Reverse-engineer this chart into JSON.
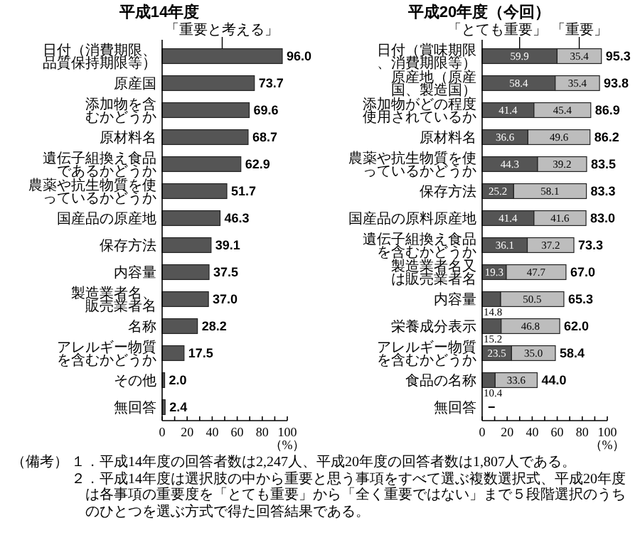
{
  "chart_data": [
    {
      "type": "bar",
      "orientation": "horizontal",
      "title": "平成14年度",
      "legend": "top",
      "categories": [
        "日付（消費期限、品質保持期限等）",
        "原産国",
        "添加物を含むかどうか",
        "原材料名",
        "遺伝子組換え食品であるかどうか",
        "農薬や抗生物質を使っているかどうか",
        "国産品の原産地",
        "保存方法",
        "内容量",
        "製造業者名、販売業者名",
        "名称",
        "アレルギー物質を含むかどうか",
        "その他",
        "無回答"
      ],
      "series": [
        {
          "name": "「重要と考える」",
          "color": "#555555",
          "values": [
            96.0,
            73.7,
            69.6,
            68.7,
            62.9,
            51.7,
            46.3,
            39.1,
            37.5,
            37.0,
            28.2,
            17.5,
            2.0,
            2.4
          ],
          "value_labels": [
            "96.0",
            "73.7",
            "69.6",
            "68.7",
            "62.9",
            "51.7",
            "46.3",
            "39.1",
            "37.5",
            "37.0",
            "28.2",
            "17.5",
            "2.0",
            "2.4"
          ]
        }
      ],
      "xlim": [
        0,
        100
      ],
      "xticks": [
        0,
        {
          "value": 10,
          "label": null
        },
        20,
        {
          "value": 30,
          "label": null
        },
        40,
        {
          "value": 50,
          "label": null
        },
        60,
        {
          "value": 70,
          "label": null
        },
        80,
        {
          "value": 90,
          "label": null
        },
        100
      ],
      "xlabel": "（%）"
    },
    {
      "type": "bar",
      "orientation": "horizontal",
      "stacked": true,
      "title": "平成20年度（今回）",
      "legend": "top",
      "categories": [
        "日付（賞味期限、消費期限等）",
        "原産地（原産国、製造国）",
        "添加物がどの程度使用されているか",
        "原材料名",
        "農薬や抗生物質を使っているかどうか",
        "保存方法",
        "国産品の原料原産地",
        "遺伝子組換え食品を含むかどうか",
        "製造業者名又は販売業者名",
        "内容量",
        "栄養成分表示",
        "アレルギー物質を含むかどうか",
        "食品の名称",
        "無回答"
      ],
      "series": [
        {
          "name": "「とても重要」",
          "color": "#555555",
          "values": [
            59.9,
            58.4,
            41.4,
            36.6,
            44.3,
            25.2,
            41.4,
            36.1,
            19.3,
            14.8,
            15.2,
            23.5,
            10.4,
            null
          ],
          "value_labels": [
            "59.9",
            "58.4",
            "41.4",
            "36.6",
            "44.3",
            "25.2",
            "41.4",
            "36.1",
            "19.3",
            "14.8",
            "15.2",
            "23.5",
            "10.4",
            null
          ]
        },
        {
          "name": "「重要」",
          "color": "#bdbdbd",
          "values": [
            35.4,
            35.4,
            45.4,
            49.6,
            39.2,
            58.1,
            41.6,
            37.2,
            47.7,
            50.5,
            46.8,
            35.0,
            33.6,
            null
          ],
          "value_labels": [
            "35.4",
            "35.4",
            "45.4",
            "49.6",
            "39.2",
            "58.1",
            "41.6",
            "37.2",
            "47.7",
            "50.5",
            "46.8",
            "35.0",
            "33.6",
            null
          ]
        }
      ],
      "totals": [
        "95.3",
        "93.8",
        "86.9",
        "86.2",
        "83.5",
        "83.3",
        "83.0",
        "73.3",
        "67.0",
        "65.3",
        "62.0",
        "58.4",
        "44.0",
        "−"
      ],
      "xlim": [
        0,
        100
      ],
      "xticks": [
        0,
        {
          "value": 10,
          "label": null
        },
        20,
        {
          "value": 30,
          "label": null
        },
        40,
        {
          "value": 50,
          "label": null
        },
        60,
        {
          "value": 70,
          "label": null
        },
        80,
        {
          "value": 90,
          "label": null
        },
        100
      ],
      "xlabel": "（%）",
      "annotations": [
        "（備考）",
        "１．平成14年度の回答者数は2,247人、平成20年度の回答者数は1,807人である。",
        "２．平成14年度は選択肢の中から重要と思う事項をすべて選ぶ複数選択式、平成20年度は各事項の重要度を「とても重要」から「全く重要ではない」まで５段階選択のうちのひとつを選ぶ方式で得た回答結果である。"
      ]
    }
  ]
}
